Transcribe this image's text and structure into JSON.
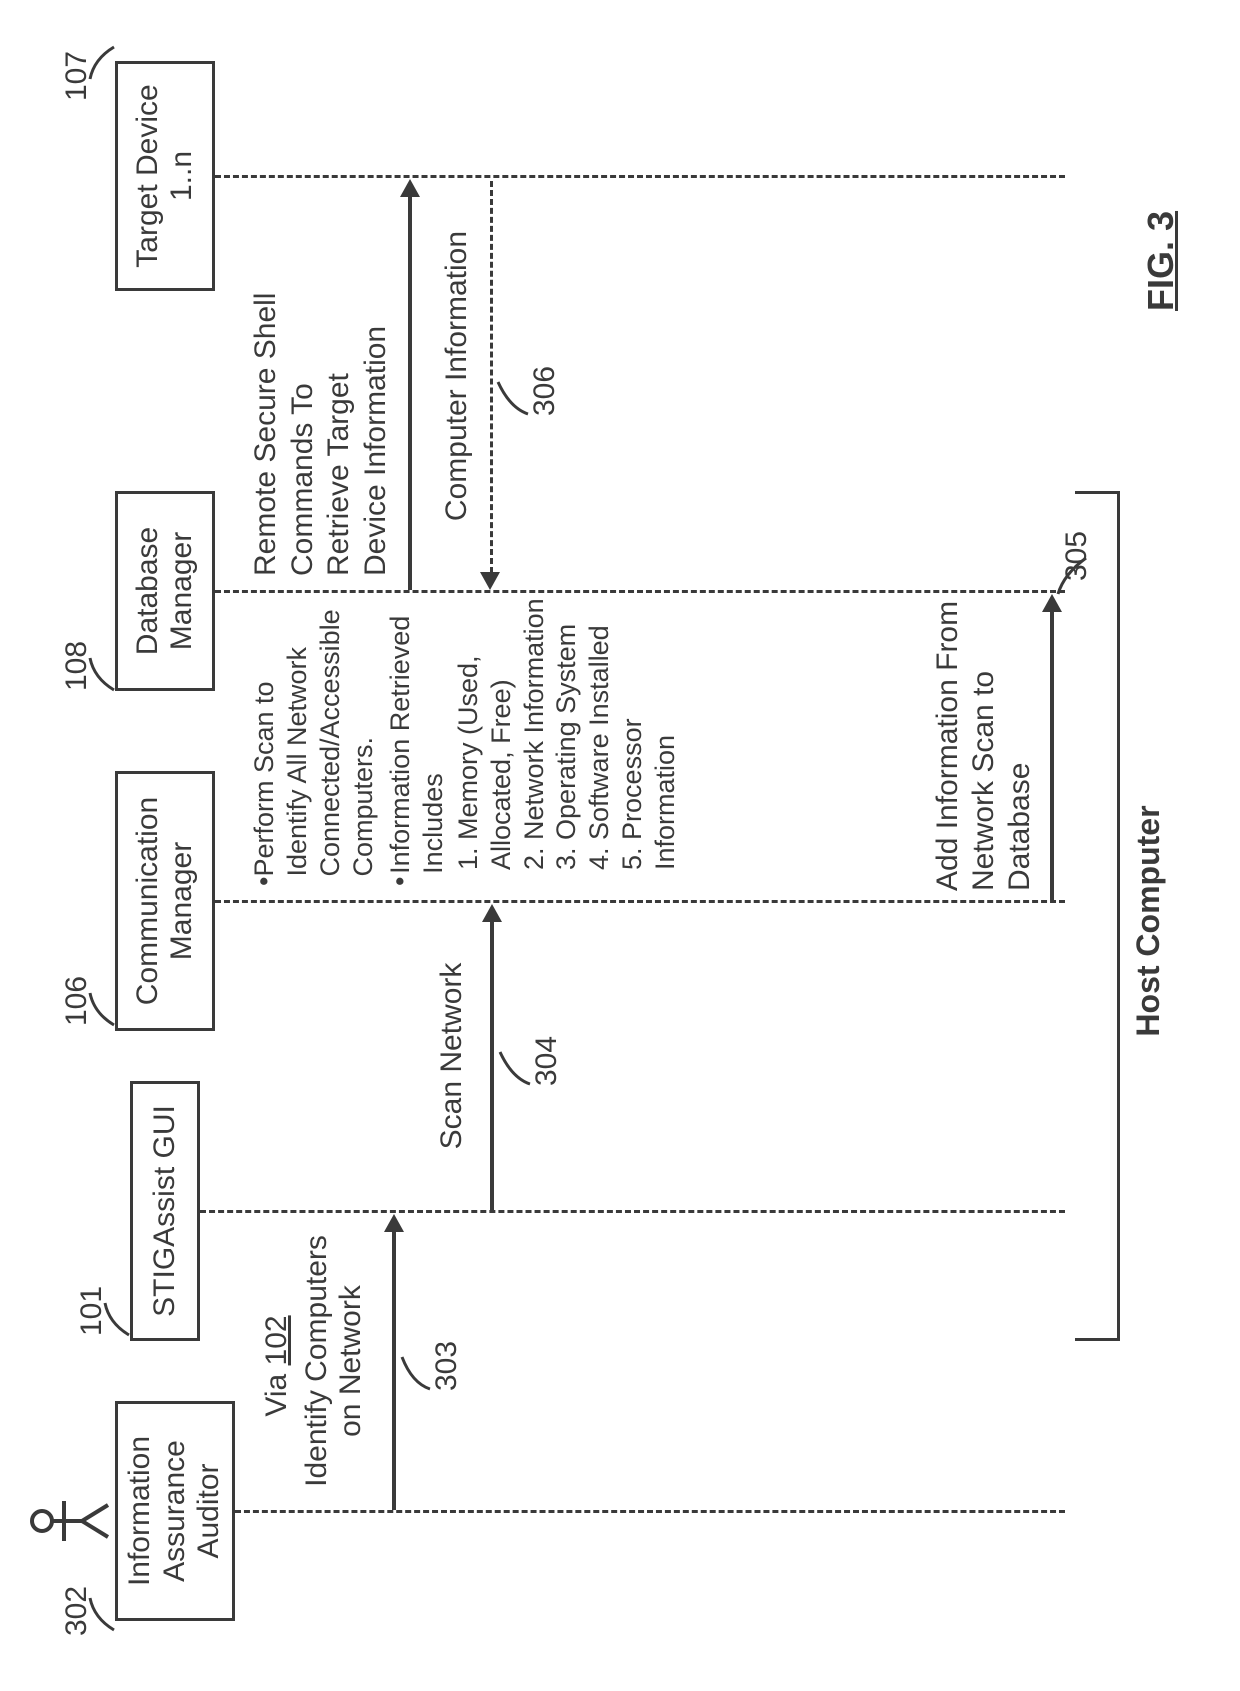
{
  "diagram": {
    "type": "flowchart",
    "orientation": "landscape_rotated_90ccw",
    "background_color": "#ffffff",
    "stroke_color": "#3a3a3a",
    "text_color": "#3a3a3a",
    "box_border_width": 3,
    "dash_pattern": "5 5",
    "font_family": "Arial",
    "font_size_box": 30,
    "font_size_callout": 30,
    "font_size_ref": 30,
    "font_size_figcap": 36,
    "fig_caption": "FIG. 3",
    "host_label": "Host Computer",
    "actors": [
      {
        "id": "auditor",
        "ref": "302",
        "label": "Information\nAssurance\nAuditor",
        "has_stick_figure": true
      },
      {
        "id": "gui",
        "ref": "101",
        "label": "STIGAssist GUI"
      },
      {
        "id": "comm",
        "ref": "106",
        "label": "Communication\nManager"
      },
      {
        "id": "db",
        "ref": "108",
        "label": "Database\nManager"
      },
      {
        "id": "target",
        "ref": "107",
        "label": "Target Device\n1..n"
      }
    ],
    "messages": [
      {
        "id": "identify",
        "ref": "303",
        "from": "auditor",
        "to": "gui",
        "label_top": "Via 102",
        "label": "Identify Computers\non Network",
        "via_underlined": "102"
      },
      {
        "id": "scan",
        "ref": "304",
        "from": "gui",
        "to": "comm",
        "label": "Scan Network"
      },
      {
        "id": "addinfo",
        "ref": "305",
        "from": "comm",
        "to": "db",
        "label": "Add Information From\nNetwork Scan to\nDatabase"
      },
      {
        "id": "compinfo",
        "ref": "306",
        "from": "target",
        "to": "db",
        "label": "Computer Information",
        "dashed": true
      }
    ],
    "self_note": {
      "on": "comm-db",
      "between_label": "Remote Secure Shell\nCommands To\nRetrieve Target\nDevice Information",
      "bullets": [
        "Perform Scan to Identify All Network Connected/Accessible Computers.",
        "Information Retrieved Includes"
      ],
      "numbered": [
        "Memory (Used, Allocated, Free)",
        "Network Information",
        "Operating System",
        "Software Installed",
        "Processor Information"
      ]
    }
  }
}
